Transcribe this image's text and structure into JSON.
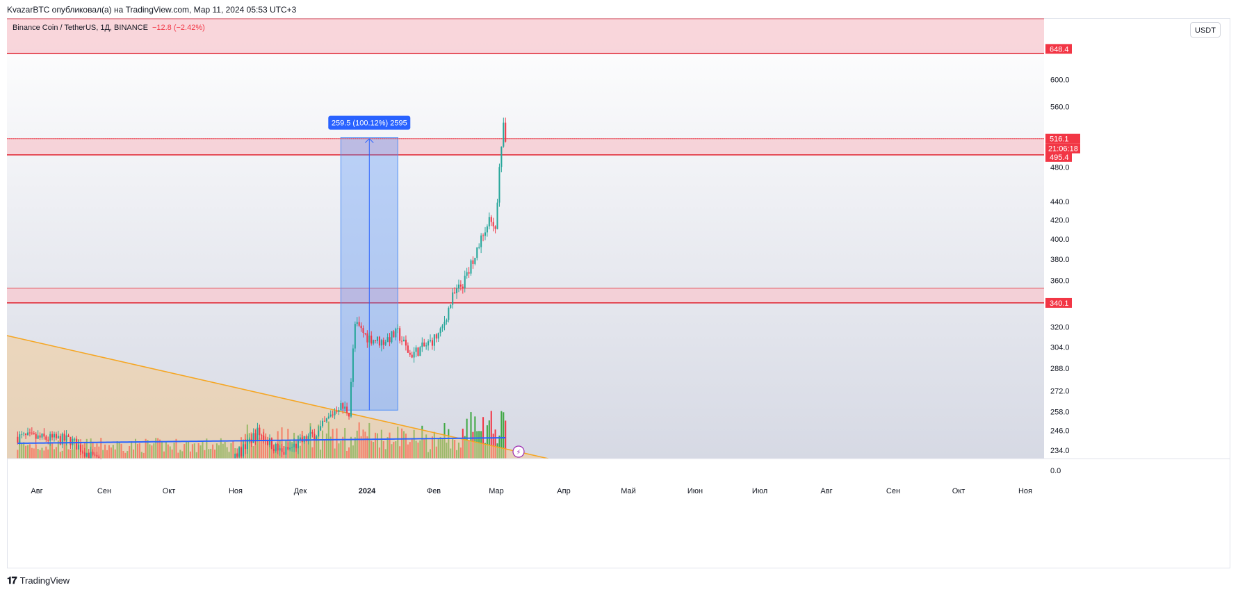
{
  "publication": {
    "text": "KvazarBTC опубликовал(а) на TradingView.com, Мар 11, 2024 05:53 UTC+3"
  },
  "legend": {
    "symbol": "Binance Coin / TetherUS, 1Д, BINANCE",
    "change": "−12.8 (−2.42%)"
  },
  "unit_button": {
    "label": "USDT"
  },
  "footer": {
    "brand": "TradingView"
  },
  "colors": {
    "up": "#26a69a",
    "down": "#f23645",
    "zone_fill": "#f7c8cf",
    "zone_line": "#e0222f",
    "measure": "#2962ff",
    "wedge": "#f5a623",
    "ma": "#2962ff",
    "vol_up": "#3fa844",
    "vol_down": "#f23645"
  },
  "chart_data": {
    "type": "candlestick",
    "price_scale": "log",
    "y_ticks": [
      "648.4",
      "600.0",
      "560.0",
      "516.1",
      "480.0",
      "440.0",
      "420.0",
      "400.0",
      "380.0",
      "360.0",
      "340.1",
      "320.0",
      "304.0",
      "288.0",
      "272.0",
      "258.0",
      "246.0",
      "234.0",
      "0.0"
    ],
    "x_ticks": [
      "Авг",
      "Сен",
      "Окт",
      "Ноя",
      "Дек",
      "2024",
      "Фев",
      "Мар",
      "Апр",
      "Май",
      "Июн",
      "Июл",
      "Авг",
      "Сен",
      "Окт",
      "Ноя"
    ],
    "price_labels": {
      "top_zone": "648.4",
      "current_price": "516.1",
      "countdown": "21:06:18",
      "mid_zone": "495.4",
      "low_zone": "340.1"
    },
    "zones": [
      {
        "from": 641,
        "to": 700
      },
      {
        "from": 495.4,
        "to": 516
      },
      {
        "from": 340.1,
        "to": 353
      }
    ],
    "measure_label": "259.5 (100.12%) 2595",
    "measure": {
      "from_date": "2023-12-21",
      "to_date": "2024-01-18",
      "low": 259,
      "high": 518
    },
    "wedge_line": {
      "from_date": "2023-07-15",
      "from_price": 313,
      "to_date": "2024-04-01",
      "to_price": 229
    },
    "ohlc_anchors": [
      [
        "2023-07-15",
        242
      ],
      [
        "2023-08-10",
        240
      ],
      [
        "2023-09-05",
        215
      ],
      [
        "2023-10-01",
        212
      ],
      [
        "2023-10-20",
        215
      ],
      [
        "2023-11-10",
        245
      ],
      [
        "2023-11-22",
        232
      ],
      [
        "2023-12-10",
        245
      ],
      [
        "2023-12-20",
        262
      ],
      [
        "2023-12-25",
        258
      ],
      [
        "2023-12-28",
        322
      ],
      [
        "2024-01-03",
        312
      ],
      [
        "2024-01-10",
        308
      ],
      [
        "2024-01-18",
        315
      ],
      [
        "2024-01-24",
        298
      ],
      [
        "2024-02-01",
        305
      ],
      [
        "2024-02-08",
        315
      ],
      [
        "2024-02-14",
        345
      ],
      [
        "2024-02-20",
        360
      ],
      [
        "2024-02-27",
        395
      ],
      [
        "2024-03-03",
        418
      ],
      [
        "2024-03-06",
        405
      ],
      [
        "2024-03-08",
        485
      ],
      [
        "2024-03-10",
        530
      ],
      [
        "2024-03-11",
        516.1
      ]
    ]
  }
}
